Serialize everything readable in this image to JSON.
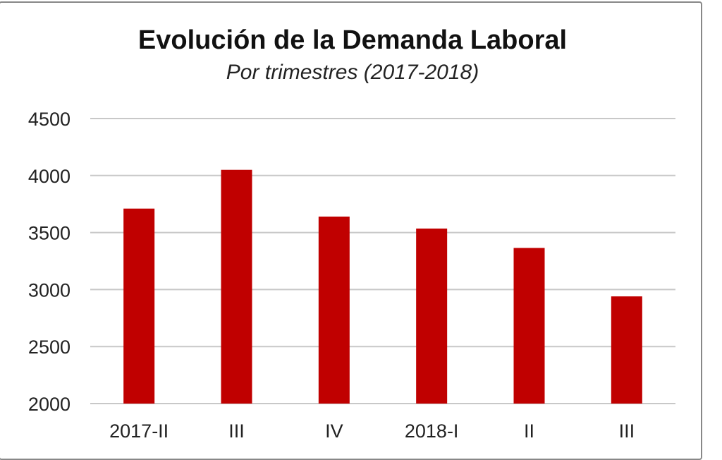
{
  "chart_data": {
    "type": "bar",
    "title": "Evolución de la Demanda Laboral",
    "subtitle": "Por trimestres (2017-2018)",
    "categories": [
      "2017-II",
      "III",
      "IV",
      "2018-I",
      "II",
      "III"
    ],
    "values": [
      3710,
      4050,
      3640,
      3535,
      3365,
      2940
    ],
    "xlabel": "",
    "ylabel": "",
    "ylim": [
      2000,
      4500
    ],
    "yticks": [
      2000,
      2500,
      3000,
      3500,
      4000,
      4500
    ],
    "grid": true,
    "bar_color": "#c00000"
  }
}
